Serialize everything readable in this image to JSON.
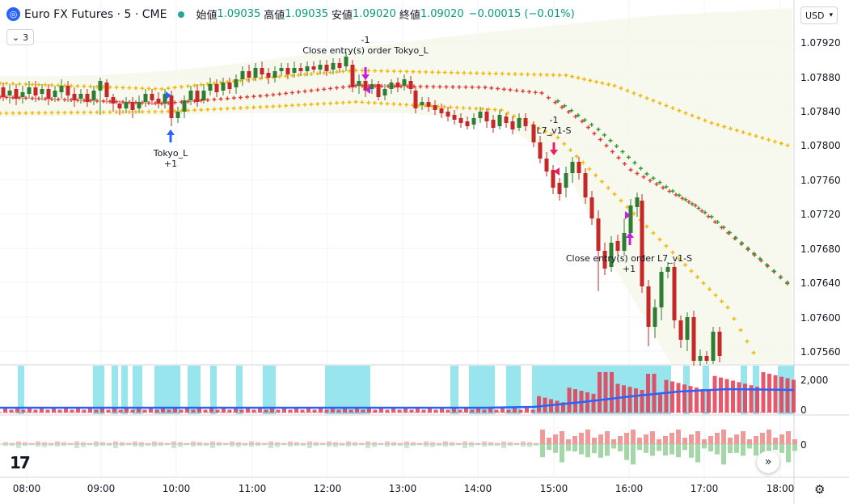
{
  "header": {
    "symbol": "Euro FX Futures · 5 · CME",
    "open_label": "始値",
    "open_value": "1.09035",
    "high_label": "高値",
    "high_value": "1.09035",
    "low_label": "安値",
    "low_value": "1.09020",
    "close_label": "終値",
    "close_value": "1.09020",
    "change": "−0.00015 (−0.01%)",
    "collapse_count": "3",
    "currency": "USD"
  },
  "price_axis": [
    "1.07920",
    "1.07880",
    "1.07840",
    "1.07800",
    "1.07760",
    "1.07720",
    "1.07680",
    "1.07640",
    "1.07600",
    "1.07560"
  ],
  "volume_axis": [
    "2,000",
    "0"
  ],
  "osc_axis": [
    "0"
  ],
  "time_axis": [
    "08:00",
    "09:00",
    "10:00",
    "11:00",
    "12:00",
    "13:00",
    "14:00",
    "15:00",
    "16:00",
    "17:00",
    "18:00"
  ],
  "annotations": {
    "tokyo_entry": "Tokyo_L",
    "tokyo_entry_qty": "+1",
    "tokyo_exit_qty": "-1",
    "tokyo_exit": "Close entry(s) order Tokyo_L",
    "l7_entry_qty": "-1",
    "l7_entry": "L7_v1-S",
    "l7_exit": "Close entry(s) order L7_v1-S",
    "l7_exit_qty": "+1"
  },
  "colors": {
    "up": "#2e7d32",
    "down": "#c62828",
    "band_outer": "#f2b705",
    "band_mid": "#e53935",
    "band_green": "#2e9c2e",
    "volume_high": "#80deea",
    "volume_bar": "#e53950",
    "volume_ma": "#2962ff",
    "osc_up": "#ef9a9a",
    "osc_down": "#a5d6a7"
  }
}
